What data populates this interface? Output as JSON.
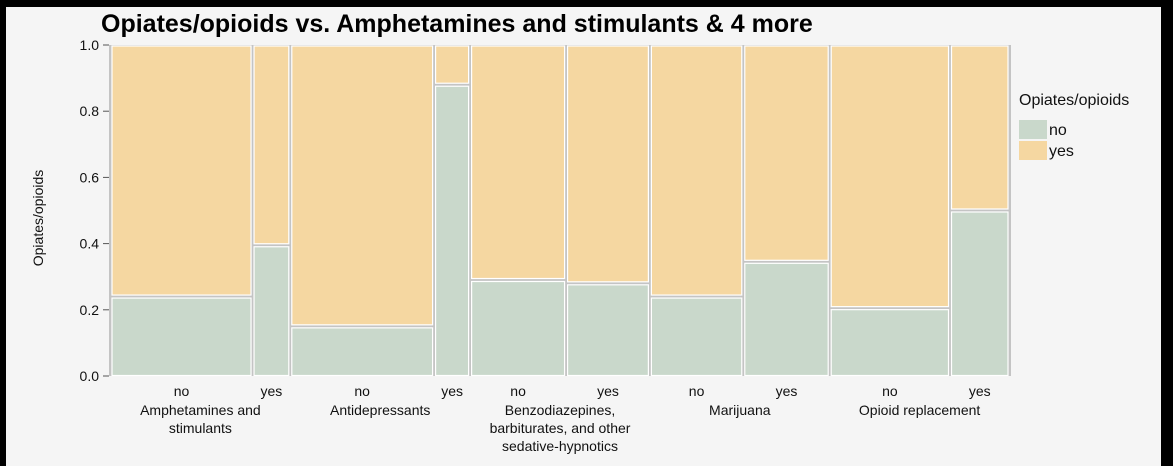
{
  "chart_data": {
    "type": "mosaic",
    "title": "Opiates/opioids vs. Amphetamines and stimulants & 4 more",
    "ylabel": "Opiates/opioids",
    "ylim": [
      0,
      1
    ],
    "yticks": [
      "0.0",
      "0.2",
      "0.4",
      "0.6",
      "0.8",
      "1.0"
    ],
    "legend": {
      "title": "Opiates/opioids",
      "position": "right",
      "items": [
        {
          "label": "no",
          "color": "#c9d8cb"
        },
        {
          "label": "yes",
          "color": "#f5d7a1"
        }
      ]
    },
    "groups": [
      {
        "label_lines": [
          "Amphetamines and",
          "stimulants"
        ],
        "columns": [
          {
            "label": "no",
            "width_share": 0.8,
            "no": 0.24,
            "yes": 0.76
          },
          {
            "label": "yes",
            "width_share": 0.2,
            "no": 0.395,
            "yes": 0.605
          }
        ]
      },
      {
        "label_lines": [
          "Antidepressants"
        ],
        "columns": [
          {
            "label": "no",
            "width_share": 0.81,
            "no": 0.15,
            "yes": 0.85
          },
          {
            "label": "yes",
            "width_share": 0.19,
            "no": 0.88,
            "yes": 0.12
          }
        ]
      },
      {
        "label_lines": [
          "Benzodiazepines,",
          "barbiturates, and other",
          "sedative-hypnotics"
        ],
        "columns": [
          {
            "label": "no",
            "width_share": 0.535,
            "no": 0.29,
            "yes": 0.71
          },
          {
            "label": "yes",
            "width_share": 0.465,
            "no": 0.28,
            "yes": 0.72
          }
        ]
      },
      {
        "label_lines": [
          "Marijuana"
        ],
        "columns": [
          {
            "label": "no",
            "width_share": 0.52,
            "no": 0.24,
            "yes": 0.76
          },
          {
            "label": "yes",
            "width_share": 0.48,
            "no": 0.345,
            "yes": 0.655
          }
        ]
      },
      {
        "label_lines": [
          "Opioid replacement"
        ],
        "columns": [
          {
            "label": "no",
            "width_share": 0.675,
            "no": 0.205,
            "yes": 0.795
          },
          {
            "label": "yes",
            "width_share": 0.325,
            "no": 0.5,
            "yes": 0.5
          }
        ]
      }
    ]
  }
}
